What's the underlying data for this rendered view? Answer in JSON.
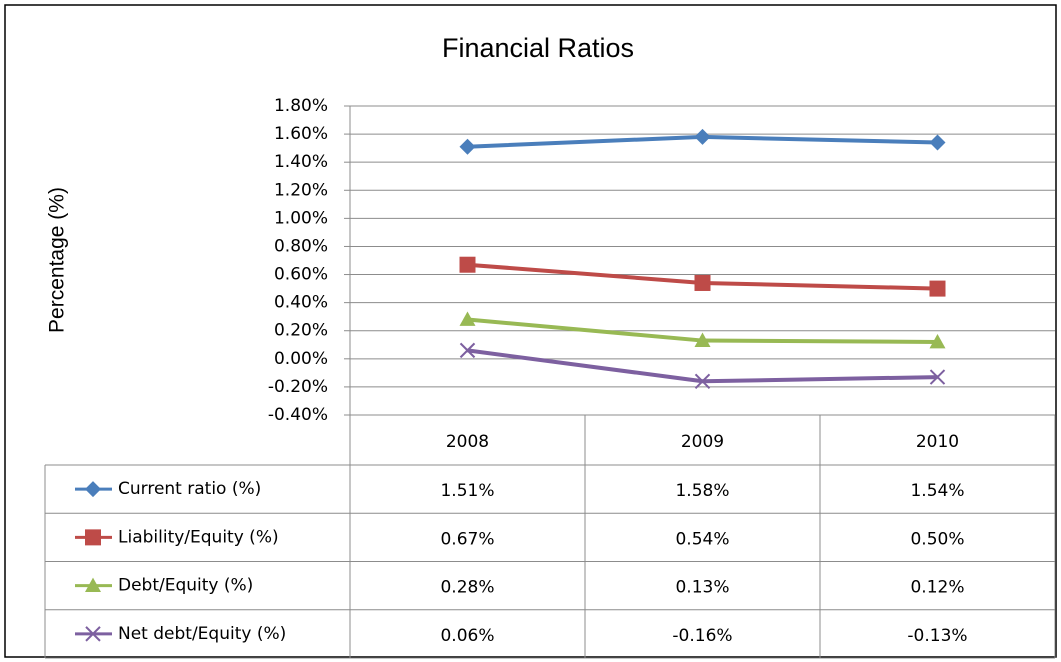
{
  "chart_data": {
    "type": "line",
    "title": "Financial Ratios",
    "y_label": "Percentage (%)",
    "categories": [
      "2008",
      "2009",
      "2010"
    ],
    "series": [
      {
        "name": "Current ratio (%)",
        "color": "#4a7ebb",
        "marker": "diamond",
        "values": [
          1.51,
          1.58,
          1.54
        ],
        "value_labels": [
          "1.51%",
          "1.58%",
          "1.54%"
        ]
      },
      {
        "name": "Liability/Equity (%)",
        "color": "#be4b48",
        "marker": "square",
        "values": [
          0.67,
          0.54,
          0.5
        ],
        "value_labels": [
          "0.67%",
          "0.54%",
          "0.50%"
        ]
      },
      {
        "name": "Debt/Equity (%)",
        "color": "#98b954",
        "marker": "triangle",
        "values": [
          0.28,
          0.13,
          0.12
        ],
        "value_labels": [
          "0.28%",
          "0.13%",
          "0.12%"
        ]
      },
      {
        "name": "Net debt/Equity (%)",
        "color": "#7d60a0",
        "marker": "x",
        "values": [
          0.06,
          -0.16,
          -0.13
        ],
        "value_labels": [
          "0.06%",
          "-0.16%",
          "-0.13%"
        ]
      }
    ],
    "ylim": [
      -0.4,
      1.8
    ],
    "yticks": [
      {
        "value": -0.4,
        "label": "-0.40%"
      },
      {
        "value": -0.2,
        "label": "-0.20%"
      },
      {
        "value": 0,
        "label": "0.00%"
      },
      {
        "value": 0.2,
        "label": "0.20%"
      },
      {
        "value": 0.4,
        "label": "0.40%"
      },
      {
        "value": 0.6,
        "label": "0.60%"
      },
      {
        "value": 0.8,
        "label": "0.80%"
      },
      {
        "value": 1.0,
        "label": "1.00%"
      },
      {
        "value": 1.2,
        "label": "1.20%"
      },
      {
        "value": 1.4,
        "label": "1.40%"
      },
      {
        "value": 1.6,
        "label": "1.60%"
      },
      {
        "value": 1.8,
        "label": "1.80%"
      }
    ],
    "grid": true,
    "data_table": true
  }
}
